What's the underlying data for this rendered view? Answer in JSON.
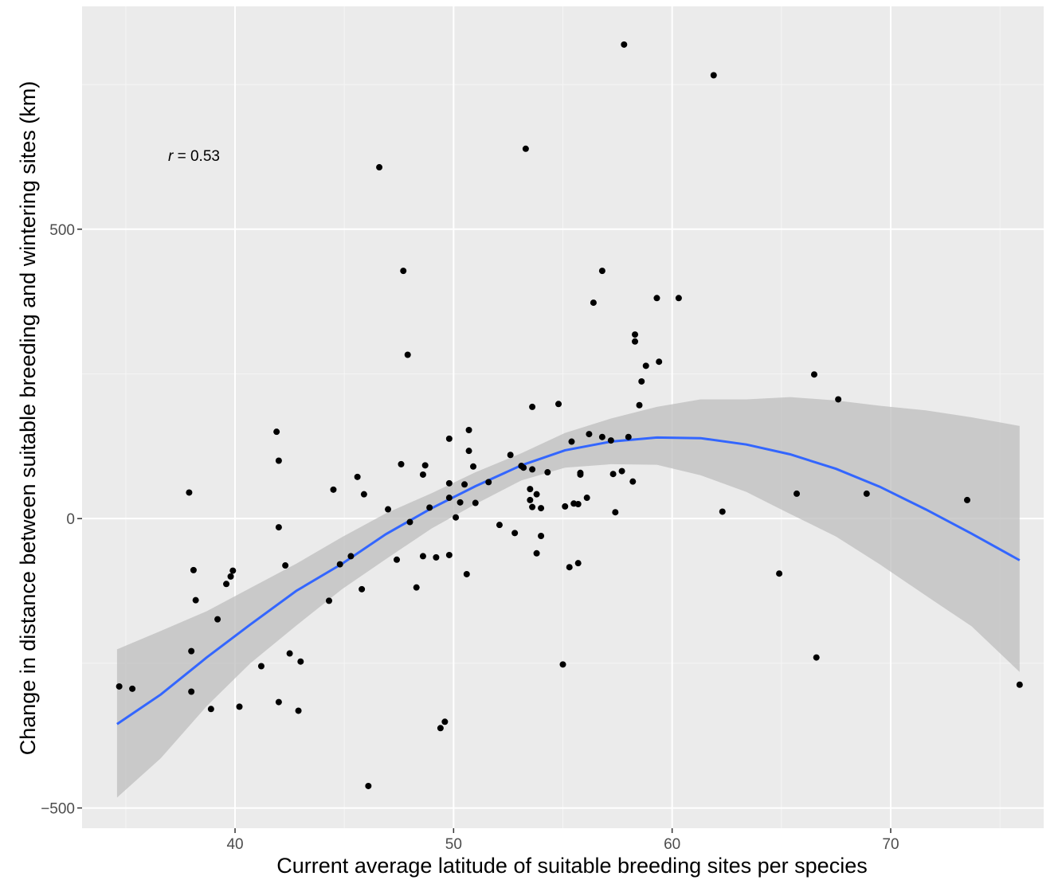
{
  "chart_data": {
    "type": "scatter",
    "title": "",
    "xlabel": "Current average latitude of suitable breeding sites per species",
    "ylabel": "Change in distance between suitable breeding and wintering sites (km)",
    "xlim": [
      33.0,
      77.0
    ],
    "ylim": [
      -535,
      885
    ],
    "x_ticks": [
      40,
      50,
      60,
      70
    ],
    "x_tick_labels": [
      "40",
      "50",
      "60",
      "70"
    ],
    "y_ticks": [
      -500,
      0,
      500
    ],
    "y_tick_labels": [
      "−500",
      "0",
      "500"
    ],
    "grid": true,
    "annotation": {
      "symbol": "r",
      "text": " = 0.53"
    },
    "points": [
      [
        34.7,
        -290
      ],
      [
        35.3,
        -294
      ],
      [
        37.9,
        45
      ],
      [
        38.0,
        -229
      ],
      [
        38.0,
        -299
      ],
      [
        38.1,
        -89
      ],
      [
        38.2,
        -141
      ],
      [
        38.9,
        -329
      ],
      [
        39.2,
        -174
      ],
      [
        39.6,
        -113
      ],
      [
        39.8,
        -100
      ],
      [
        39.9,
        -90
      ],
      [
        40.2,
        -325
      ],
      [
        41.2,
        -255
      ],
      [
        41.9,
        150
      ],
      [
        42.0,
        100
      ],
      [
        42.0,
        -15
      ],
      [
        42.0,
        -317
      ],
      [
        42.3,
        -81
      ],
      [
        42.5,
        -233
      ],
      [
        42.9,
        -332
      ],
      [
        43.0,
        -247
      ],
      [
        44.3,
        -142
      ],
      [
        44.5,
        50
      ],
      [
        44.8,
        -79
      ],
      [
        45.3,
        -65
      ],
      [
        45.6,
        72
      ],
      [
        45.8,
        -122
      ],
      [
        45.9,
        42
      ],
      [
        46.1,
        -462
      ],
      [
        46.6,
        607
      ],
      [
        47.0,
        16
      ],
      [
        47.4,
        -71
      ],
      [
        47.6,
        94
      ],
      [
        47.7,
        428
      ],
      [
        47.9,
        283
      ],
      [
        48.0,
        -6
      ],
      [
        48.3,
        -119
      ],
      [
        48.6,
        -65
      ],
      [
        48.6,
        76
      ],
      [
        48.7,
        92
      ],
      [
        48.9,
        19
      ],
      [
        49.2,
        -67
      ],
      [
        49.4,
        -362
      ],
      [
        49.6,
        -351
      ],
      [
        49.8,
        61
      ],
      [
        49.8,
        -63
      ],
      [
        49.8,
        138
      ],
      [
        49.8,
        36
      ],
      [
        50.1,
        2
      ],
      [
        50.3,
        28
      ],
      [
        50.5,
        59
      ],
      [
        50.6,
        -96
      ],
      [
        50.7,
        117
      ],
      [
        50.7,
        153
      ],
      [
        50.9,
        90
      ],
      [
        51.0,
        27
      ],
      [
        51.6,
        63
      ],
      [
        52.1,
        -11
      ],
      [
        52.6,
        110
      ],
      [
        52.8,
        -25
      ],
      [
        53.1,
        91
      ],
      [
        53.2,
        88
      ],
      [
        53.3,
        639
      ],
      [
        53.5,
        51
      ],
      [
        53.5,
        32
      ],
      [
        53.6,
        193
      ],
      [
        53.6,
        20
      ],
      [
        53.6,
        85
      ],
      [
        53.8,
        -60
      ],
      [
        53.8,
        42
      ],
      [
        54.0,
        18
      ],
      [
        54.0,
        -30
      ],
      [
        54.3,
        80
      ],
      [
        54.8,
        198
      ],
      [
        55.0,
        -252
      ],
      [
        55.1,
        21
      ],
      [
        55.3,
        -84
      ],
      [
        55.4,
        133
      ],
      [
        55.5,
        26
      ],
      [
        55.7,
        -77
      ],
      [
        55.7,
        25
      ],
      [
        55.8,
        76
      ],
      [
        55.8,
        79
      ],
      [
        56.1,
        36
      ],
      [
        56.2,
        146
      ],
      [
        56.4,
        373
      ],
      [
        56.8,
        428
      ],
      [
        56.8,
        141
      ],
      [
        57.2,
        135
      ],
      [
        57.3,
        77
      ],
      [
        57.4,
        11
      ],
      [
        57.7,
        82
      ],
      [
        57.8,
        819
      ],
      [
        58.0,
        141
      ],
      [
        58.2,
        64
      ],
      [
        58.3,
        318
      ],
      [
        58.3,
        306
      ],
      [
        58.5,
        196
      ],
      [
        58.6,
        237
      ],
      [
        58.8,
        264
      ],
      [
        59.3,
        381
      ],
      [
        59.4,
        271
      ],
      [
        60.3,
        381
      ],
      [
        61.9,
        766
      ],
      [
        62.3,
        12
      ],
      [
        64.9,
        -95
      ],
      [
        65.7,
        43
      ],
      [
        66.5,
        249
      ],
      [
        66.6,
        -240
      ],
      [
        67.6,
        206
      ],
      [
        68.9,
        43
      ],
      [
        73.5,
        32
      ],
      [
        75.9,
        -287
      ]
    ],
    "fit": {
      "method": "quadratic",
      "x": [
        34.6,
        36.6,
        38.7,
        40.7,
        42.8,
        44.9,
        46.9,
        49.0,
        51.0,
        53.1,
        55.1,
        57.2,
        59.3,
        61.3,
        63.4,
        65.4,
        67.5,
        69.5,
        71.6,
        73.7,
        75.9
      ],
      "y": [
        -355,
        -304,
        -240,
        -183,
        -125,
        -78,
        -27,
        18,
        56,
        92,
        118,
        133,
        140,
        139,
        128,
        111,
        86,
        55,
        16,
        -26,
        -72
      ],
      "ci_upper": [
        -226,
        -194,
        -160,
        -120,
        -78,
        -32,
        9,
        44,
        80,
        113,
        148,
        173,
        193,
        206,
        206,
        210,
        204,
        195,
        187,
        175,
        160
      ],
      "ci_lower": [
        -482,
        -414,
        -324,
        -250,
        -185,
        -122,
        -70,
        -17,
        25,
        66,
        88,
        94,
        93,
        75,
        46,
        8,
        -31,
        -79,
        -133,
        -186,
        -265
      ],
      "line_color": "#3366ff",
      "band_color": "#bdbdbd"
    },
    "colors": {
      "panel": "#ebebeb",
      "grid_major": "#ffffff",
      "grid_minor": "#f5f5f5",
      "point": "#000000"
    }
  }
}
